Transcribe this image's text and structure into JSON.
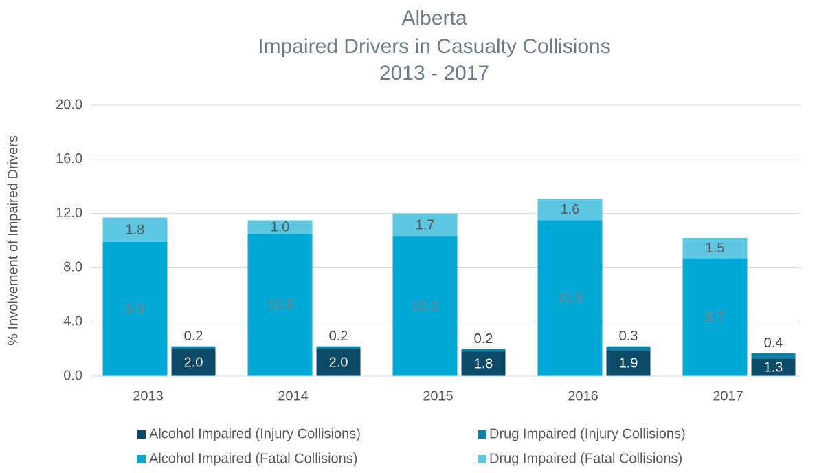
{
  "chart_data": {
    "type": "grouped_stacked_bar",
    "title": [
      "Alberta",
      "Impaired Drivers in Casualty Collisions",
      "2013 - 2017"
    ],
    "y_label": "% Involvement of Impaired Drivers",
    "categories": [
      "2013",
      "2014",
      "2015",
      "2016",
      "2017"
    ],
    "series": [
      {
        "name": "Alcohol Impaired (Injury Collisions)",
        "color": "#0c4a6a",
        "label_color": "#ffffff",
        "stack": 1,
        "values": [
          2.0,
          2.0,
          1.8,
          1.9,
          1.3
        ],
        "value_labels": [
          "2.0",
          "2.0",
          "1.8",
          "1.9",
          "1.3"
        ]
      },
      {
        "name": "Drug Impaired (Injury Collisions)",
        "color": "#127ea1",
        "label_color": "#404040",
        "stack": 1,
        "values": [
          0.2,
          0.2,
          0.2,
          0.3,
          0.4
        ],
        "value_labels": [
          "0.2",
          "0.2",
          "0.2",
          "0.3",
          "0.4"
        ]
      },
      {
        "name": "Alcohol Impaired (Fatal Collisions)",
        "color": "#00a8d6",
        "label_color": "#808080",
        "stack": 0,
        "values": [
          9.9,
          10.5,
          10.3,
          11.5,
          8.7
        ],
        "value_labels": [
          "9.9",
          "10.5",
          "10.3",
          "11.5",
          "8.7"
        ]
      },
      {
        "name": "Drug Impaired (Fatal Collisions)",
        "color": "#5ec8e2",
        "label_color": "#595959",
        "stack": 0,
        "values": [
          1.8,
          1.0,
          1.7,
          1.6,
          1.5
        ],
        "value_labels": [
          "1.8",
          "1.0",
          "1.7",
          "1.6",
          "1.5"
        ]
      }
    ],
    "ylim": [
      0,
      20
    ],
    "yticks": [
      {
        "value": 0,
        "label": "0.0"
      },
      {
        "value": 4,
        "label": "4.0"
      },
      {
        "value": 8,
        "label": "8.0"
      },
      {
        "value": 12,
        "label": "12.0"
      },
      {
        "value": 16,
        "label": "16.0"
      },
      {
        "value": 20,
        "label": "20.0"
      }
    ],
    "grid": true
  }
}
